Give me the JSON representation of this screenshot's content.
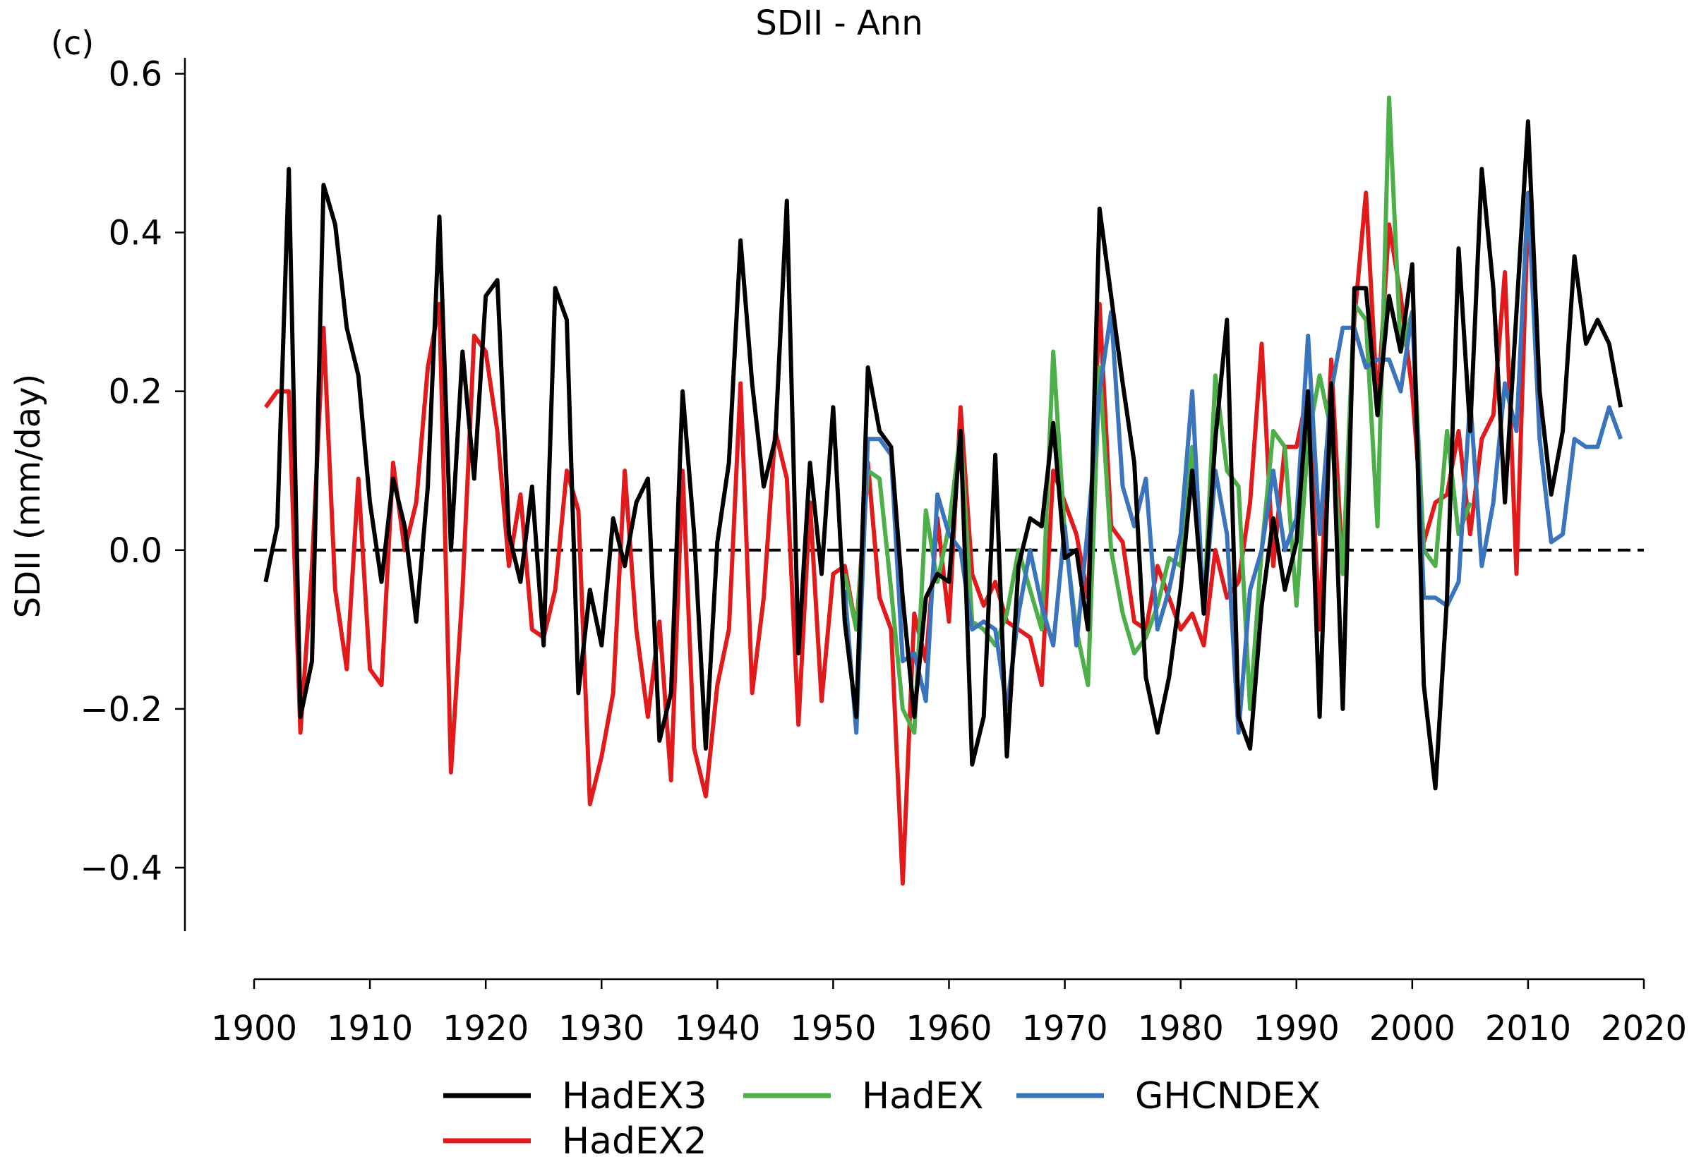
{
  "chart_data": {
    "type": "line",
    "title": "SDII - Ann",
    "panel_label": "(c)",
    "xlabel": "",
    "ylabel": "SDII (mm/day)",
    "xlim": [
      1900,
      2020
    ],
    "ylim": [
      -0.48,
      0.62
    ],
    "xticks": [
      1900,
      1910,
      1920,
      1930,
      1940,
      1950,
      1960,
      1970,
      1980,
      1990,
      2000,
      2010,
      2020
    ],
    "xtick_labels": [
      "1900",
      "1910",
      "1920",
      "1930",
      "1940",
      "1950",
      "1960",
      "1970",
      "1980",
      "1990",
      "2000",
      "2010",
      "2020"
    ],
    "yticks": [
      -0.4,
      -0.2,
      0.0,
      0.2,
      0.4,
      0.6
    ],
    "ytick_labels": [
      "−0.4",
      "−0.2",
      "0.0",
      "0.2",
      "0.4",
      "0.6"
    ],
    "reference_line": {
      "y": 0.0,
      "style": "dashed",
      "color": "#000000"
    },
    "legend_position": "bottom-center",
    "grid": false,
    "series": [
      {
        "name": "HadEX2",
        "color": "#e31a1c",
        "x_start": 1901,
        "values": [
          0.18,
          0.2,
          0.2,
          -0.23,
          -0.02,
          0.28,
          -0.05,
          -0.15,
          0.09,
          -0.15,
          -0.17,
          0.11,
          0.0,
          0.06,
          0.23,
          0.31,
          -0.28,
          -0.05,
          0.27,
          0.25,
          0.15,
          -0.02,
          0.07,
          -0.1,
          -0.11,
          -0.05,
          0.1,
          0.05,
          -0.32,
          -0.26,
          -0.18,
          0.1,
          -0.1,
          -0.21,
          -0.09,
          -0.29,
          0.1,
          -0.25,
          -0.31,
          -0.17,
          -0.1,
          0.21,
          -0.18,
          -0.06,
          0.15,
          0.09,
          -0.22,
          0.06,
          -0.19,
          -0.03,
          -0.02,
          -0.1,
          0.11,
          -0.06,
          -0.1,
          -0.42,
          -0.08,
          -0.14,
          0.04,
          -0.09,
          0.18,
          -0.03,
          -0.07,
          -0.04,
          -0.09,
          -0.1,
          -0.11,
          -0.17,
          0.1,
          0.06,
          0.02,
          -0.06,
          0.31,
          0.03,
          0.01,
          -0.09,
          -0.1,
          -0.02,
          -0.06,
          -0.1,
          -0.08,
          -0.12,
          0.0,
          -0.06,
          -0.04,
          0.06,
          0.26,
          -0.02,
          0.13,
          0.13,
          0.2,
          -0.1,
          0.24,
          -0.03,
          0.29,
          0.45,
          0.18,
          0.41,
          0.32,
          0.2,
          0.01,
          0.06,
          0.07,
          0.15,
          0.02,
          0.14,
          0.17,
          0.35,
          -0.03,
          0.43
        ]
      },
      {
        "name": "HadEX",
        "color": "#4daf4a",
        "x_start": 1951,
        "values": [
          -0.03,
          -0.1,
          0.1,
          0.09,
          -0.05,
          -0.2,
          -0.23,
          0.05,
          -0.04,
          0.03,
          0.15,
          -0.09,
          -0.1,
          -0.12,
          -0.08,
          0.0,
          -0.05,
          -0.1,
          0.25,
          0.02,
          -0.1,
          -0.17,
          0.23,
          0.0,
          -0.08,
          -0.13,
          -0.11,
          -0.07,
          -0.01,
          -0.02,
          0.13,
          -0.08,
          0.22,
          0.1,
          0.08,
          -0.2,
          0.0,
          0.15,
          0.13,
          -0.07,
          0.14,
          0.22,
          0.15,
          -0.03,
          0.31,
          0.29,
          0.03,
          0.57,
          0.25,
          0.3,
          0.0,
          -0.02,
          0.15,
          0.02,
          0.06
        ]
      },
      {
        "name": "GHCNDEX",
        "color": "#3a74bd",
        "x_start": 1951,
        "values": [
          -0.05,
          -0.23,
          0.14,
          0.14,
          0.12,
          -0.14,
          -0.13,
          -0.19,
          0.07,
          0.02,
          0.0,
          -0.1,
          -0.09,
          -0.1,
          -0.2,
          -0.08,
          0.0,
          -0.07,
          -0.12,
          0.03,
          -0.12,
          0.03,
          0.2,
          0.3,
          0.08,
          0.03,
          0.09,
          -0.1,
          -0.05,
          0.02,
          0.2,
          -0.08,
          0.1,
          0.02,
          -0.23,
          -0.05,
          0.0,
          0.1,
          0.0,
          0.04,
          0.27,
          0.02,
          0.2,
          0.28,
          0.28,
          0.23,
          0.24,
          0.24,
          0.2,
          0.3,
          -0.06,
          -0.06,
          -0.07,
          -0.04,
          0.19,
          -0.02,
          0.06,
          0.21,
          0.15,
          0.45,
          0.14,
          0.01,
          0.02,
          0.14,
          0.13,
          0.13,
          0.18,
          0.14
        ]
      },
      {
        "name": "HadEX3",
        "color": "#000000",
        "x_start": 1901,
        "values": [
          -0.04,
          0.03,
          0.48,
          -0.21,
          -0.14,
          0.46,
          0.41,
          0.28,
          0.22,
          0.06,
          -0.04,
          0.09,
          0.03,
          -0.09,
          0.08,
          0.42,
          0.0,
          0.25,
          0.09,
          0.32,
          0.34,
          0.02,
          -0.04,
          0.08,
          -0.12,
          0.33,
          0.29,
          -0.18,
          -0.05,
          -0.12,
          0.04,
          -0.02,
          0.06,
          0.09,
          -0.24,
          -0.18,
          0.2,
          0.02,
          -0.25,
          0.01,
          0.11,
          0.39,
          0.21,
          0.08,
          0.14,
          0.44,
          -0.13,
          0.11,
          -0.03,
          0.18,
          -0.09,
          -0.21,
          0.23,
          0.15,
          0.13,
          -0.06,
          -0.21,
          -0.06,
          -0.03,
          -0.04,
          0.15,
          -0.27,
          -0.21,
          0.12,
          -0.26,
          -0.02,
          0.04,
          0.03,
          0.16,
          -0.01,
          0.0,
          -0.1,
          0.43,
          0.32,
          0.21,
          0.11,
          -0.16,
          -0.23,
          -0.16,
          -0.05,
          0.1,
          -0.08,
          0.14,
          0.29,
          -0.21,
          -0.25,
          -0.07,
          0.04,
          -0.05,
          0.01,
          0.2,
          -0.21,
          0.21,
          -0.2,
          0.33,
          0.33,
          0.17,
          0.32,
          0.25,
          0.36,
          -0.17,
          -0.3,
          -0.06,
          0.38,
          0.15,
          0.48,
          0.33,
          0.06,
          0.3,
          0.54,
          0.2,
          0.07,
          0.15,
          0.37,
          0.26,
          0.29,
          0.26,
          0.18
        ]
      }
    ],
    "legend_order": [
      "HadEX3",
      "HadEX2",
      "HadEX",
      "GHCNDEX"
    ]
  }
}
